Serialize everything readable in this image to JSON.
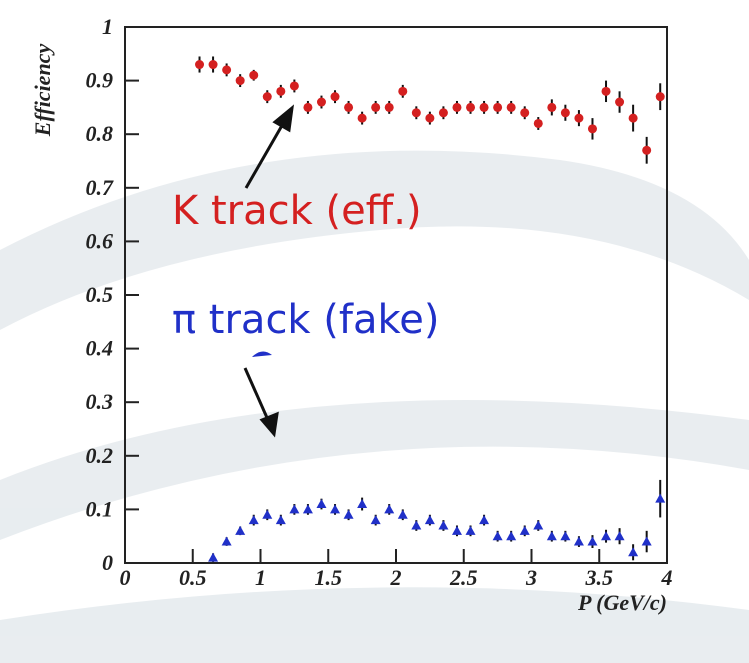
{
  "chart_data": {
    "type": "scatter",
    "xlabel": "P (GeV/c)",
    "ylabel": "Efficiency",
    "xlim": [
      0,
      4
    ],
    "xticks": [
      0,
      0.5,
      1,
      1.5,
      2,
      2.5,
      3,
      3.5,
      4
    ],
    "ylim": [
      0,
      1
    ],
    "yticks": [
      0,
      0.1,
      0.2,
      0.3,
      0.4,
      0.5,
      0.6,
      0.7,
      0.8,
      0.9,
      1
    ],
    "annotations": [
      "K track (eff.)",
      "π track (fake)"
    ],
    "series": [
      {
        "color": "#d42020",
        "marker": "circle",
        "x": [
          0.55,
          0.65,
          0.75,
          0.85,
          0.95,
          1.05,
          1.15,
          1.25,
          1.35,
          1.45,
          1.55,
          1.65,
          1.75,
          1.85,
          1.95,
          2.05,
          2.15,
          2.25,
          2.35,
          2.45,
          2.55,
          2.65,
          2.75,
          2.85,
          2.95,
          3.05,
          3.15,
          3.25,
          3.35,
          3.45,
          3.55,
          3.65,
          3.75,
          3.85,
          3.95
        ],
        "values": [
          0.93,
          0.93,
          0.92,
          0.9,
          0.91,
          0.87,
          0.88,
          0.89,
          0.85,
          0.86,
          0.87,
          0.85,
          0.83,
          0.85,
          0.85,
          0.88,
          0.84,
          0.83,
          0.84,
          0.85,
          0.85,
          0.85,
          0.85,
          0.85,
          0.84,
          0.82,
          0.85,
          0.84,
          0.83,
          0.81,
          0.88,
          0.86,
          0.83,
          0.77,
          0.87
        ],
        "errors": [
          0.015,
          0.015,
          0.012,
          0.012,
          0.01,
          0.012,
          0.012,
          0.012,
          0.012,
          0.012,
          0.012,
          0.012,
          0.012,
          0.012,
          0.012,
          0.012,
          0.012,
          0.012,
          0.012,
          0.012,
          0.012,
          0.012,
          0.012,
          0.012,
          0.012,
          0.012,
          0.015,
          0.015,
          0.015,
          0.02,
          0.02,
          0.02,
          0.025,
          0.025,
          0.025
        ]
      },
      {
        "color": "#2030c8",
        "marker": "triangle",
        "x": [
          0.65,
          0.75,
          0.85,
          0.95,
          1.05,
          1.15,
          1.25,
          1.35,
          1.45,
          1.55,
          1.65,
          1.75,
          1.85,
          1.95,
          2.05,
          2.15,
          2.25,
          2.35,
          2.45,
          2.55,
          2.65,
          2.75,
          2.85,
          2.95,
          3.05,
          3.15,
          3.25,
          3.35,
          3.45,
          3.55,
          3.65,
          3.75,
          3.85,
          3.95
        ],
        "values": [
          0.01,
          0.04,
          0.06,
          0.08,
          0.09,
          0.08,
          0.1,
          0.1,
          0.11,
          0.1,
          0.09,
          0.11,
          0.08,
          0.1,
          0.09,
          0.07,
          0.08,
          0.07,
          0.06,
          0.06,
          0.08,
          0.05,
          0.05,
          0.06,
          0.07,
          0.05,
          0.05,
          0.04,
          0.04,
          0.05,
          0.05,
          0.02,
          0.04,
          0.12
        ],
        "errors": [
          0.008,
          0.008,
          0.008,
          0.01,
          0.01,
          0.01,
          0.01,
          0.01,
          0.01,
          0.01,
          0.01,
          0.012,
          0.01,
          0.01,
          0.01,
          0.01,
          0.01,
          0.01,
          0.01,
          0.01,
          0.01,
          0.01,
          0.01,
          0.01,
          0.01,
          0.01,
          0.01,
          0.01,
          0.012,
          0.012,
          0.015,
          0.015,
          0.02,
          0.035
        ]
      }
    ]
  }
}
